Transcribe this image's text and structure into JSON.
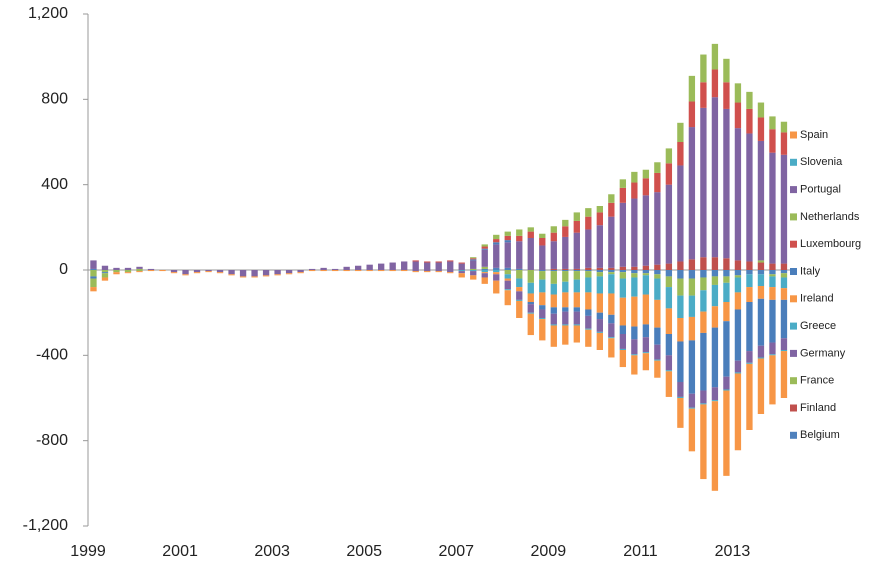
{
  "chart_data": {
    "type": "bar",
    "stacked": true,
    "categories": [
      "1999",
      null,
      null,
      null,
      null,
      null,
      null,
      null,
      "2001",
      null,
      null,
      null,
      null,
      null,
      null,
      null,
      "2003",
      null,
      null,
      null,
      null,
      null,
      null,
      null,
      "2005",
      null,
      null,
      null,
      null,
      null,
      null,
      null,
      "2007",
      null,
      null,
      null,
      null,
      null,
      null,
      null,
      "2009",
      null,
      null,
      null,
      null,
      null,
      null,
      null,
      "2011",
      null,
      null,
      null,
      null,
      null,
      null,
      null,
      "2013",
      null,
      null,
      null,
      null
    ],
    "ylim": [
      -1200,
      1200
    ],
    "yticks": [
      {
        "value": -1200,
        "label": "-1,200"
      },
      -800,
      -400,
      0,
      400,
      800,
      {
        "value": 1200,
        "label": "1,200"
      }
    ],
    "grid": false,
    "legend": "right",
    "series": [
      {
        "name": "Belgium",
        "color": "#4f81bd",
        "values": [
          5,
          0,
          0,
          0,
          0,
          0,
          0,
          0,
          0,
          0,
          0,
          0,
          0,
          0,
          0,
          0,
          0,
          0,
          0,
          0,
          0,
          0,
          0,
          0,
          0,
          0,
          0,
          0,
          0,
          0,
          0,
          0,
          0,
          0,
          5,
          10,
          10,
          5,
          0,
          -5,
          -5,
          -5,
          -5,
          -5,
          -10,
          -10,
          -10,
          -15,
          -15,
          -20,
          -30,
          -40,
          -40,
          -35,
          -30,
          -30,
          -25,
          -20,
          -20,
          -20,
          -15
        ]
      },
      {
        "name": "Finland",
        "color": "#c0504d",
        "values": [
          0,
          0,
          0,
          0,
          0,
          0,
          0,
          0,
          0,
          0,
          0,
          0,
          0,
          0,
          0,
          0,
          0,
          0,
          0,
          0,
          0,
          0,
          0,
          0,
          0,
          0,
          0,
          0,
          0,
          0,
          0,
          0,
          0,
          0,
          0,
          0,
          0,
          0,
          0,
          0,
          5,
          5,
          5,
          10,
          10,
          10,
          15,
          15,
          20,
          25,
          30,
          40,
          50,
          60,
          60,
          55,
          45,
          40,
          35,
          30,
          30
        ]
      },
      {
        "name": "France",
        "color": "#9bbb59",
        "values": [
          -30,
          -10,
          0,
          0,
          5,
          0,
          0,
          0,
          0,
          0,
          0,
          0,
          0,
          0,
          0,
          0,
          0,
          0,
          0,
          0,
          0,
          0,
          0,
          0,
          0,
          0,
          0,
          0,
          0,
          0,
          0,
          0,
          0,
          5,
          10,
          0,
          -20,
          -40,
          -60,
          -40,
          -60,
          -50,
          -40,
          -30,
          -20,
          -10,
          -30,
          -20,
          -10,
          -20,
          -50,
          -80,
          -80,
          -60,
          -40,
          -30,
          -10,
          0,
          10,
          -10,
          -20
        ]
      },
      {
        "name": "Germany",
        "color": "#8064a2",
        "values": [
          40,
          20,
          10,
          10,
          10,
          5,
          0,
          -10,
          -20,
          -10,
          -5,
          -10,
          -20,
          -30,
          -30,
          -25,
          -20,
          -15,
          -10,
          5,
          10,
          5,
          15,
          20,
          25,
          30,
          35,
          40,
          40,
          35,
          35,
          40,
          30,
          40,
          80,
          110,
          120,
          130,
          150,
          115,
          130,
          150,
          170,
          180,
          200,
          240,
          300,
          320,
          330,
          340,
          370,
          450,
          620,
          700,
          750,
          700,
          620,
          600,
          560,
          520,
          510
        ]
      },
      {
        "name": "Greece",
        "color": "#4bacc6",
        "values": [
          0,
          0,
          0,
          0,
          0,
          0,
          0,
          0,
          0,
          0,
          0,
          0,
          0,
          0,
          0,
          0,
          0,
          0,
          0,
          0,
          0,
          0,
          0,
          0,
          0,
          0,
          0,
          0,
          0,
          0,
          0,
          0,
          -5,
          -5,
          -10,
          -10,
          -20,
          -40,
          -50,
          -60,
          -50,
          -50,
          -60,
          -70,
          -80,
          -90,
          -90,
          -90,
          -90,
          -100,
          -100,
          -105,
          -100,
          -100,
          -100,
          -90,
          -70,
          -60,
          -55,
          -50,
          -50
        ]
      },
      {
        "name": "Ireland",
        "color": "#f79646",
        "values": [
          0,
          0,
          0,
          0,
          0,
          0,
          0,
          0,
          0,
          0,
          0,
          0,
          0,
          0,
          0,
          0,
          0,
          0,
          0,
          0,
          0,
          0,
          0,
          0,
          0,
          0,
          0,
          0,
          0,
          0,
          0,
          0,
          0,
          0,
          -5,
          -10,
          -10,
          -20,
          -40,
          -60,
          -60,
          -70,
          -70,
          -80,
          -90,
          -100,
          -130,
          -140,
          -140,
          -130,
          -120,
          -110,
          -110,
          -100,
          -100,
          -90,
          -80,
          -70,
          -60,
          -60,
          -55
        ]
      },
      {
        "name": "Italy",
        "color": "#4a7ebb",
        "values": [
          -10,
          -5,
          0,
          0,
          0,
          0,
          0,
          0,
          0,
          0,
          0,
          0,
          0,
          0,
          0,
          0,
          0,
          0,
          0,
          0,
          0,
          0,
          0,
          0,
          0,
          0,
          0,
          0,
          0,
          0,
          0,
          0,
          0,
          5,
          5,
          10,
          10,
          0,
          -10,
          -20,
          -30,
          -20,
          -20,
          -30,
          -30,
          -40,
          -40,
          -60,
          -60,
          -80,
          -100,
          -190,
          -250,
          -270,
          -280,
          -260,
          -240,
          -230,
          -220,
          -200,
          -180
        ]
      },
      {
        "name": "Luxembourg",
        "color": "#d0504d",
        "values": [
          0,
          0,
          0,
          0,
          0,
          0,
          0,
          0,
          0,
          0,
          0,
          0,
          0,
          0,
          0,
          0,
          0,
          0,
          0,
          0,
          0,
          0,
          0,
          0,
          0,
          0,
          0,
          0,
          5,
          5,
          5,
          5,
          5,
          5,
          10,
          15,
          20,
          25,
          30,
          35,
          40,
          50,
          55,
          60,
          60,
          65,
          70,
          75,
          80,
          90,
          100,
          110,
          120,
          120,
          130,
          125,
          120,
          115,
          110,
          110,
          105
        ]
      },
      {
        "name": "Netherlands",
        "color": "#9bbb59",
        "values": [
          -40,
          -20,
          -10,
          -10,
          -5,
          0,
          0,
          0,
          0,
          0,
          0,
          0,
          0,
          0,
          0,
          0,
          0,
          0,
          0,
          0,
          0,
          0,
          0,
          0,
          0,
          0,
          0,
          0,
          0,
          0,
          0,
          0,
          0,
          5,
          10,
          20,
          20,
          30,
          20,
          20,
          30,
          30,
          40,
          40,
          30,
          40,
          40,
          50,
          40,
          50,
          70,
          90,
          120,
          130,
          120,
          110,
          90,
          80,
          70,
          60,
          50
        ]
      },
      {
        "name": "Portugal",
        "color": "#8064a2",
        "values": [
          0,
          0,
          0,
          0,
          0,
          0,
          0,
          0,
          0,
          0,
          0,
          0,
          0,
          0,
          0,
          0,
          0,
          0,
          0,
          0,
          0,
          0,
          0,
          0,
          0,
          0,
          0,
          0,
          -5,
          -5,
          -5,
          -10,
          -10,
          -20,
          -20,
          -30,
          -40,
          -40,
          -40,
          -40,
          -50,
          -60,
          -60,
          -60,
          -60,
          -65,
          -70,
          -70,
          -70,
          -70,
          -70,
          -70,
          -65,
          -60,
          -60,
          -60,
          -55,
          -55,
          -55,
          -55,
          -55
        ]
      },
      {
        "name": "Slovenia",
        "color": "#4bacc6",
        "values": [
          0,
          0,
          0,
          0,
          0,
          0,
          0,
          0,
          0,
          0,
          0,
          0,
          0,
          0,
          0,
          0,
          0,
          0,
          0,
          0,
          0,
          0,
          0,
          0,
          0,
          0,
          0,
          0,
          0,
          0,
          0,
          0,
          0,
          0,
          0,
          0,
          -5,
          -5,
          -5,
          -5,
          -5,
          -5,
          -5,
          -5,
          -5,
          -5,
          -5,
          -5,
          -5,
          -5,
          -5,
          -5,
          -5,
          -5,
          -5,
          -5,
          -5,
          -5,
          -5,
          -5,
          -5
        ]
      },
      {
        "name": "Spain",
        "color": "#f79646",
        "values": [
          -20,
          -15,
          -10,
          -5,
          -5,
          -5,
          -5,
          -5,
          -5,
          -5,
          -5,
          -5,
          -5,
          -5,
          -5,
          -5,
          -5,
          -5,
          -5,
          -5,
          -5,
          -5,
          -5,
          -5,
          -5,
          -5,
          -5,
          -5,
          -5,
          -5,
          -5,
          -5,
          -20,
          -20,
          -30,
          -60,
          -70,
          -80,
          -100,
          -100,
          -100,
          -90,
          -80,
          -80,
          -80,
          -90,
          -80,
          -90,
          -80,
          -80,
          -120,
          -140,
          -200,
          -350,
          -420,
          -400,
          -360,
          -310,
          -260,
          -230,
          -220
        ]
      }
    ]
  }
}
